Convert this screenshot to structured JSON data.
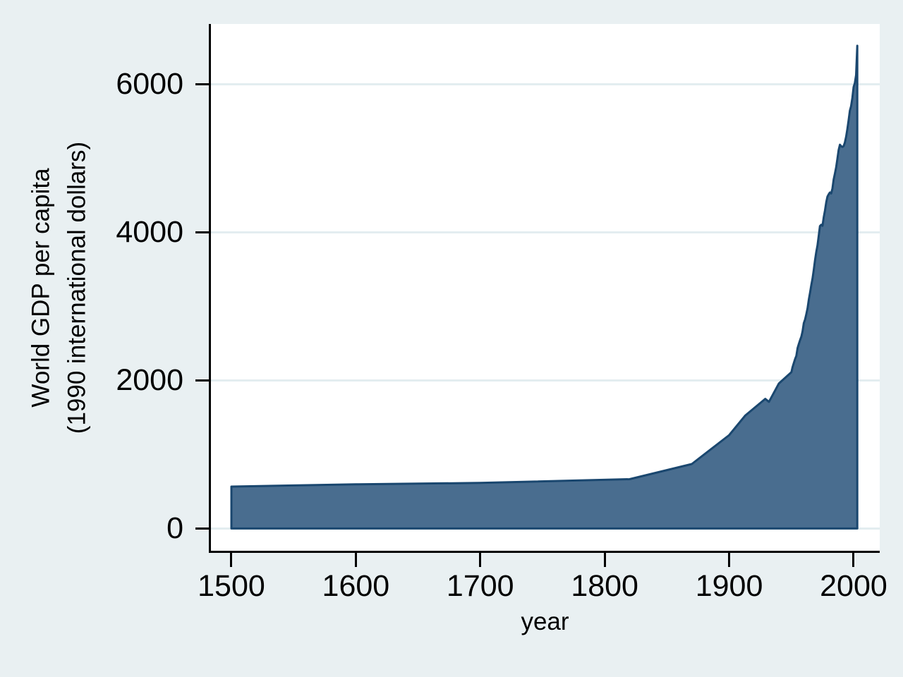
{
  "figure": {
    "background_color": "#e9f0f2",
    "plot_background_color": "#ffffff",
    "axis_color": "#000000",
    "grid_color": "#e3edf0"
  },
  "chart_data": {
    "type": "area",
    "title": "",
    "xlabel": "year",
    "ylabel": "World GDP per capita (1990 international dollars)",
    "ylabel_lines": [
      "World GDP per capita",
      "(1990 international dollars)"
    ],
    "x_ticks": [
      1500,
      1600,
      1700,
      1800,
      1900,
      2000
    ],
    "y_ticks": [
      0,
      2000,
      4000,
      6000
    ],
    "xlim": [
      1483,
      2021
    ],
    "ylim": [
      -310,
      6810
    ],
    "grid": "horizontal gridlines at labeled y ticks",
    "legend": "none",
    "baseline": 0,
    "series": [
      {
        "name": "World GDP per capita",
        "fill_color": "#496d8f",
        "line_color": "#1a476f",
        "points": [
          [
            1500,
            566
          ],
          [
            1600,
            596
          ],
          [
            1700,
            615
          ],
          [
            1820,
            666
          ],
          [
            1870,
            870
          ],
          [
            1900,
            1261
          ],
          [
            1913,
            1526
          ],
          [
            1929,
            1750
          ],
          [
            1932,
            1710
          ],
          [
            1940,
            1958
          ],
          [
            1950,
            2111
          ],
          [
            1951,
            2180
          ],
          [
            1952,
            2235
          ],
          [
            1953,
            2290
          ],
          [
            1954,
            2330
          ],
          [
            1955,
            2437
          ],
          [
            1956,
            2490
          ],
          [
            1957,
            2543
          ],
          [
            1958,
            2589
          ],
          [
            1959,
            2660
          ],
          [
            1960,
            2773
          ],
          [
            1961,
            2822
          ],
          [
            1962,
            2891
          ],
          [
            1963,
            2972
          ],
          [
            1964,
            3090
          ],
          [
            1965,
            3181
          ],
          [
            1966,
            3284
          ],
          [
            1967,
            3371
          ],
          [
            1968,
            3490
          ],
          [
            1969,
            3622
          ],
          [
            1970,
            3729
          ],
          [
            1971,
            3822
          ],
          [
            1972,
            3955
          ],
          [
            1973,
            4083
          ],
          [
            1974,
            4100
          ],
          [
            1975,
            4086
          ],
          [
            1976,
            4199
          ],
          [
            1977,
            4292
          ],
          [
            1978,
            4404
          ],
          [
            1979,
            4480
          ],
          [
            1980,
            4511
          ],
          [
            1981,
            4536
          ],
          [
            1982,
            4523
          ],
          [
            1983,
            4590
          ],
          [
            1984,
            4710
          ],
          [
            1985,
            4791
          ],
          [
            1986,
            4879
          ],
          [
            1987,
            4989
          ],
          [
            1988,
            5110
          ],
          [
            1989,
            5180
          ],
          [
            1990,
            5160
          ],
          [
            1991,
            5150
          ],
          [
            1992,
            5160
          ],
          [
            1993,
            5210
          ],
          [
            1994,
            5290
          ],
          [
            1995,
            5390
          ],
          [
            1996,
            5510
          ],
          [
            1997,
            5640
          ],
          [
            1998,
            5700
          ],
          [
            1999,
            5810
          ],
          [
            2000,
            5960
          ],
          [
            2001,
            6010
          ],
          [
            2002,
            6120
          ],
          [
            2003,
            6516
          ]
        ]
      }
    ]
  }
}
